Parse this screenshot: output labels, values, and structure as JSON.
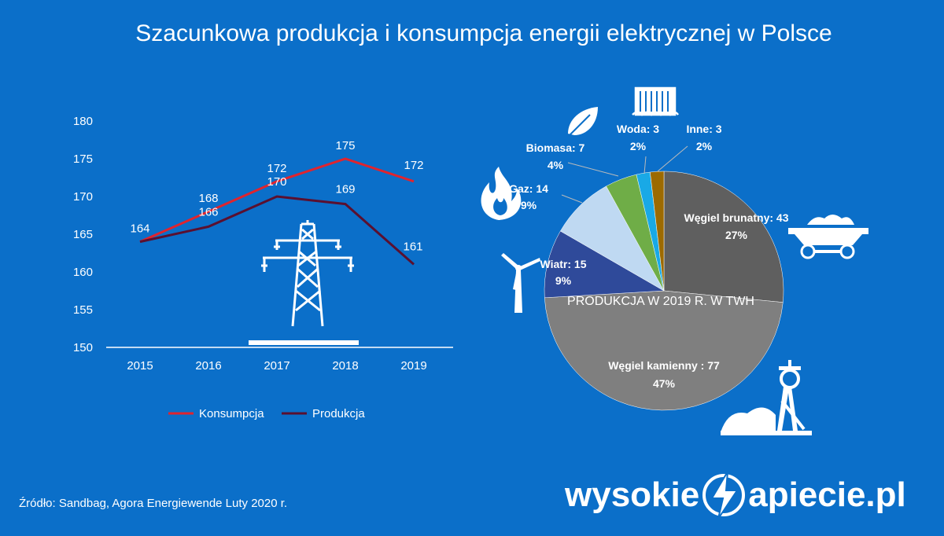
{
  "title": "Szacunkowa produkcja i konsumpcja energii elektrycznej w Polsce",
  "source": "Źródło: Sandbag, Agora Energiewende  Luty 2020 r.",
  "brand": {
    "left": "wysokie",
    "right": "apiecie.pl"
  },
  "chart_data": [
    {
      "type": "line",
      "title": "",
      "x": [
        "2015",
        "2016",
        "2017",
        "2018",
        "2019"
      ],
      "y_ticks": [
        "150",
        "155",
        "160",
        "165",
        "170",
        "175",
        "180"
      ],
      "ylim": [
        150,
        180
      ],
      "grid": false,
      "legend_position": "bottom",
      "series": [
        {
          "name": "Konsumpcja",
          "color": "#e0242e",
          "values": [
            164,
            168,
            172,
            175,
            172
          ],
          "labels": [
            "164",
            "168",
            "172",
            "175",
            "172"
          ]
        },
        {
          "name": "Produkcja",
          "color": "#5a1030",
          "values": [
            164,
            166,
            170,
            169,
            161
          ],
          "labels": [
            "",
            "166",
            "170",
            "169",
            "161"
          ]
        }
      ]
    },
    {
      "type": "pie",
      "title": "PRODUKCJA W 2019 R. W TWH",
      "slices": [
        {
          "label": "Węgiel brunatny: 43",
          "pct": "27%",
          "value": 43,
          "color": "#5f5f5f"
        },
        {
          "label": "Węgiel kamienny : 77",
          "pct": "47%",
          "value": 77,
          "color": "#7f7f7f"
        },
        {
          "label": "Wiatr: 15",
          "pct": "9%",
          "value": 15,
          "color": "#2f4a9a"
        },
        {
          "label": "Gaz: 14",
          "pct": "9%",
          "value": 14,
          "color": "#bfd9f2"
        },
        {
          "label": "Biomasa: 7",
          "pct": "4%",
          "value": 7,
          "color": "#6fad47"
        },
        {
          "label": "Woda: 3",
          "pct": "2%",
          "value": 3,
          "color": "#19a9e6"
        },
        {
          "label": "Inne: 3",
          "pct": "2%",
          "value": 3,
          "color": "#9c6a00"
        }
      ]
    }
  ]
}
